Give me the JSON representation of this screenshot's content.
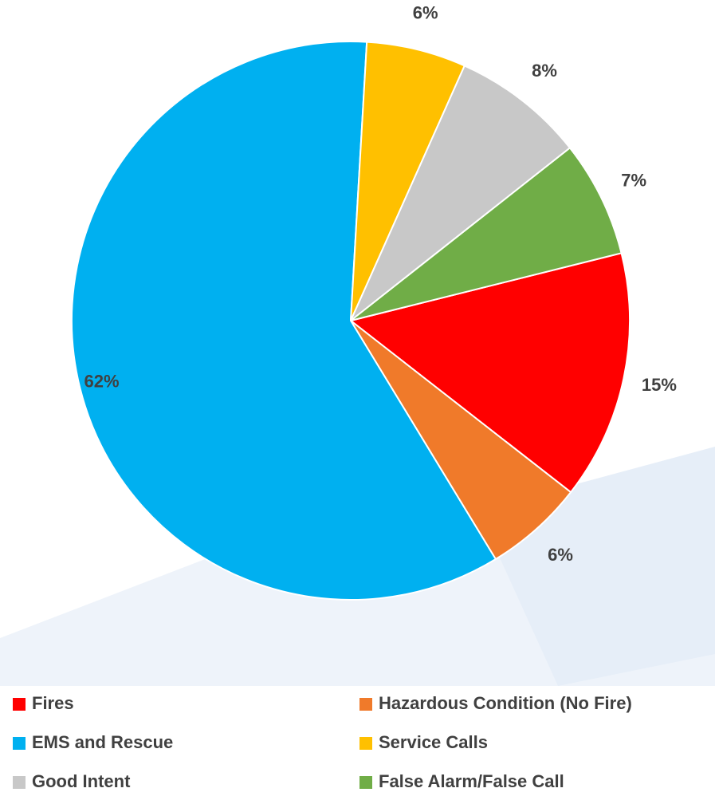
{
  "chart_data": {
    "type": "pie",
    "categories": [
      "Fires",
      "Hazardous Condition (No Fire)",
      "EMS and Rescue",
      "Service Calls",
      "Good Intent",
      "False Alarm/False Call"
    ],
    "values": [
      15,
      6,
      62,
      6,
      8,
      7
    ],
    "value_labels": [
      "15%",
      "6%",
      "62%",
      "6%",
      "8%",
      "7%"
    ],
    "colors": [
      "#ff0000",
      "#f07a2a",
      "#00b0f0",
      "#ffc000",
      "#c8c8c8",
      "#70ad47"
    ]
  }
}
